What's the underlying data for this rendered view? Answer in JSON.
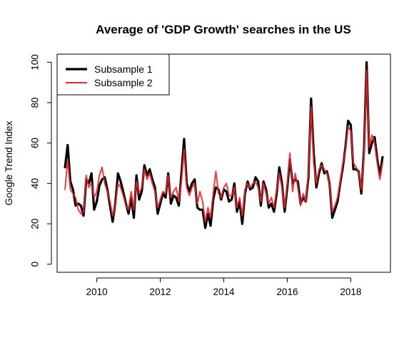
{
  "chart_data": {
    "type": "line",
    "title": "Average of 'GDP Growth' searches in the US",
    "xlabel": "",
    "ylabel": "Google Trend Index",
    "xlim": [
      2008.75,
      2019.25
    ],
    "ylim": [
      -4,
      104
    ],
    "x_ticks": [
      "2010",
      "2012",
      "2014",
      "2016",
      "2018"
    ],
    "y_ticks": [
      "0",
      "20",
      "40",
      "60",
      "80",
      "100"
    ],
    "legend": {
      "position": "top-left",
      "entries": [
        "Subsample 1",
        "Subsample 2"
      ]
    },
    "grid": false,
    "series": [
      {
        "name": "Subsample 1",
        "color": "#000000",
        "x": [
          2009.0,
          2009.083,
          2009.167,
          2009.25,
          2009.333,
          2009.417,
          2009.5,
          2009.583,
          2009.667,
          2009.75,
          2009.833,
          2009.917,
          2010.0,
          2010.083,
          2010.167,
          2010.25,
          2010.333,
          2010.417,
          2010.5,
          2010.583,
          2010.667,
          2010.75,
          2010.833,
          2010.917,
          2011.0,
          2011.083,
          2011.167,
          2011.25,
          2011.333,
          2011.417,
          2011.5,
          2011.583,
          2011.667,
          2011.75,
          2011.833,
          2011.917,
          2012.0,
          2012.083,
          2012.167,
          2012.25,
          2012.333,
          2012.417,
          2012.5,
          2012.583,
          2012.667,
          2012.75,
          2012.833,
          2012.917,
          2013.0,
          2013.083,
          2013.167,
          2013.25,
          2013.333,
          2013.417,
          2013.5,
          2013.583,
          2013.667,
          2013.75,
          2013.833,
          2013.917,
          2014.0,
          2014.083,
          2014.167,
          2014.25,
          2014.333,
          2014.417,
          2014.5,
          2014.583,
          2014.667,
          2014.75,
          2014.833,
          2014.917,
          2015.0,
          2015.083,
          2015.167,
          2015.25,
          2015.333,
          2015.417,
          2015.5,
          2015.583,
          2015.667,
          2015.75,
          2015.833,
          2015.917,
          2016.0,
          2016.083,
          2016.167,
          2016.25,
          2016.333,
          2016.417,
          2016.5,
          2016.583,
          2016.667,
          2016.75,
          2016.833,
          2016.917,
          2017.0,
          2017.083,
          2017.167,
          2017.25,
          2017.333,
          2017.417,
          2017.5,
          2017.583,
          2017.667,
          2017.75,
          2017.833,
          2017.917,
          2018.0,
          2018.083,
          2018.167,
          2018.25,
          2018.333,
          2018.417,
          2018.5,
          2018.583,
          2018.667,
          2018.75,
          2018.833,
          2018.917,
          2019.0
        ],
        "values": [
          48,
          59,
          41,
          37,
          29,
          30,
          29,
          24,
          42,
          40,
          45,
          27,
          31,
          39,
          42,
          43,
          37,
          29,
          21,
          30,
          45,
          41,
          36,
          30,
          25,
          33,
          23,
          44,
          32,
          36,
          49,
          44,
          47,
          42,
          38,
          25,
          30,
          35,
          33,
          45,
          30,
          34,
          33,
          29,
          45,
          62,
          40,
          36,
          40,
          42,
          28,
          27,
          27,
          18,
          25,
          19,
          32,
          38,
          37,
          32,
          37,
          36,
          31,
          32,
          40,
          26,
          31,
          20,
          35,
          41,
          37,
          38,
          43,
          41,
          29,
          41,
          37,
          28,
          30,
          26,
          35,
          48,
          40,
          26,
          38,
          52,
          40,
          42,
          41,
          30,
          33,
          31,
          43,
          82,
          55,
          38,
          45,
          50,
          45,
          46,
          40,
          23,
          27,
          31,
          40,
          48,
          58,
          71,
          69,
          47,
          47,
          46,
          35,
          57,
          100,
          55,
          60,
          63,
          52,
          44,
          53
        ]
      },
      {
        "name": "Subsample 2",
        "color": "#e8262b",
        "x": [
          2009.0,
          2009.083,
          2009.167,
          2009.25,
          2009.333,
          2009.417,
          2009.5,
          2009.583,
          2009.667,
          2009.75,
          2009.833,
          2009.917,
          2010.0,
          2010.083,
          2010.167,
          2010.25,
          2010.333,
          2010.417,
          2010.5,
          2010.583,
          2010.667,
          2010.75,
          2010.833,
          2010.917,
          2011.0,
          2011.083,
          2011.167,
          2011.25,
          2011.333,
          2011.417,
          2011.5,
          2011.583,
          2011.667,
          2011.75,
          2011.833,
          2011.917,
          2012.0,
          2012.083,
          2012.167,
          2012.25,
          2012.333,
          2012.417,
          2012.5,
          2012.583,
          2012.667,
          2012.75,
          2012.833,
          2012.917,
          2013.0,
          2013.083,
          2013.167,
          2013.25,
          2013.333,
          2013.417,
          2013.5,
          2013.583,
          2013.667,
          2013.75,
          2013.833,
          2013.917,
          2014.0,
          2014.083,
          2014.167,
          2014.25,
          2014.333,
          2014.417,
          2014.5,
          2014.583,
          2014.667,
          2014.75,
          2014.833,
          2014.917,
          2015.0,
          2015.083,
          2015.167,
          2015.25,
          2015.333,
          2015.417,
          2015.5,
          2015.583,
          2015.667,
          2015.75,
          2015.833,
          2015.917,
          2016.0,
          2016.083,
          2016.167,
          2016.25,
          2016.333,
          2016.417,
          2016.5,
          2016.583,
          2016.667,
          2016.75,
          2016.833,
          2016.917,
          2017.0,
          2017.083,
          2017.167,
          2017.25,
          2017.333,
          2017.417,
          2017.5,
          2017.583,
          2017.667,
          2017.75,
          2017.833,
          2017.917,
          2018.0,
          2018.083,
          2018.167,
          2018.25,
          2018.333,
          2018.417,
          2018.5,
          2018.583,
          2018.667,
          2018.75,
          2018.833,
          2018.917,
          2019.0
        ],
        "values": [
          37,
          52,
          37,
          35,
          33,
          27,
          25,
          26,
          44,
          38,
          40,
          33,
          36,
          44,
          48,
          40,
          36,
          31,
          24,
          29,
          40,
          38,
          34,
          29,
          27,
          36,
          27,
          41,
          35,
          38,
          47,
          42,
          45,
          40,
          36,
          28,
          32,
          36,
          35,
          44,
          33,
          36,
          38,
          31,
          41,
          57,
          38,
          34,
          38,
          40,
          30,
          36,
          31,
          21,
          28,
          23,
          35,
          46,
          35,
          33,
          38,
          40,
          34,
          34,
          38,
          28,
          33,
          24,
          37,
          40,
          38,
          40,
          41,
          38,
          31,
          40,
          35,
          30,
          33,
          28,
          37,
          45,
          38,
          28,
          40,
          55,
          36,
          45,
          38,
          29,
          35,
          31,
          45,
          78,
          50,
          40,
          47,
          49,
          47,
          45,
          40,
          26,
          29,
          33,
          41,
          50,
          56,
          68,
          66,
          50,
          48,
          46,
          37,
          54,
          96,
          58,
          64,
          60,
          50,
          42,
          50
        ]
      }
    ]
  }
}
